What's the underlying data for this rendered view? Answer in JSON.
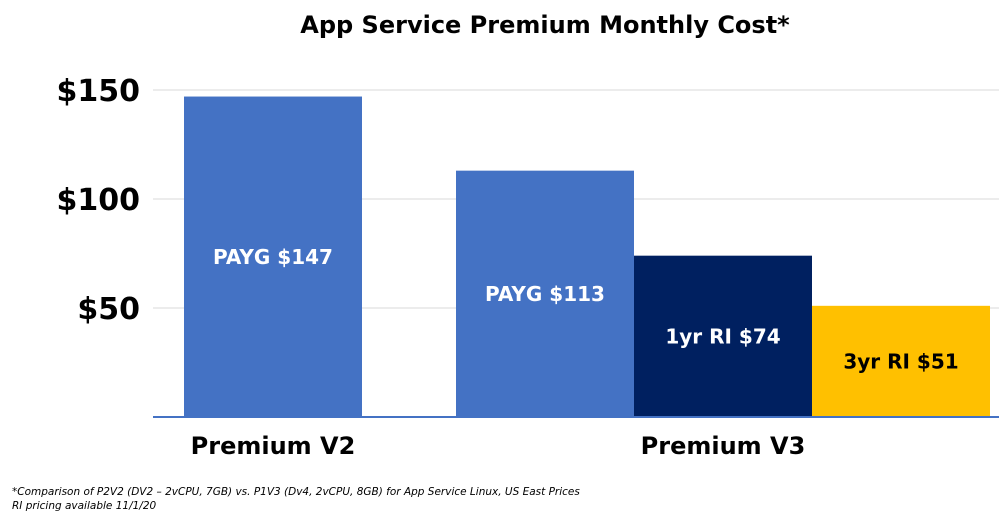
{
  "chart_data": {
    "type": "bar",
    "title": "App Service Premium Monthly Cost*",
    "ylim": [
      0,
      150
    ],
    "yticks": [
      {
        "value": 50,
        "label": "$50"
      },
      {
        "value": 100,
        "label": "$100"
      },
      {
        "value": 150,
        "label": "$150"
      }
    ],
    "grid": true,
    "groups": [
      {
        "name": "Premium V2",
        "bars": [
          {
            "label": "PAYG $147",
            "value": 147,
            "color": "#4472C4",
            "text_color": "#ffffff"
          }
        ]
      },
      {
        "name": "Premium V3",
        "bars": [
          {
            "label": "PAYG $113",
            "value": 113,
            "color": "#4472C4",
            "text_color": "#ffffff"
          },
          {
            "label": "1yr RI $74",
            "value": 74,
            "color": "#002060",
            "text_color": "#ffffff"
          },
          {
            "label": "3yr RI $51",
            "value": 51,
            "color": "#FFC000",
            "text_color": "#000000"
          }
        ]
      }
    ]
  },
  "footnote": {
    "line1": "*Comparison of P2V2 (DV2 – 2vCPU, 7GB) vs. P1V3 (Dv4, 2vCPU, 8GB) for App Service Linux, US East Prices",
    "line2": "RI pricing available 11/1/20"
  }
}
